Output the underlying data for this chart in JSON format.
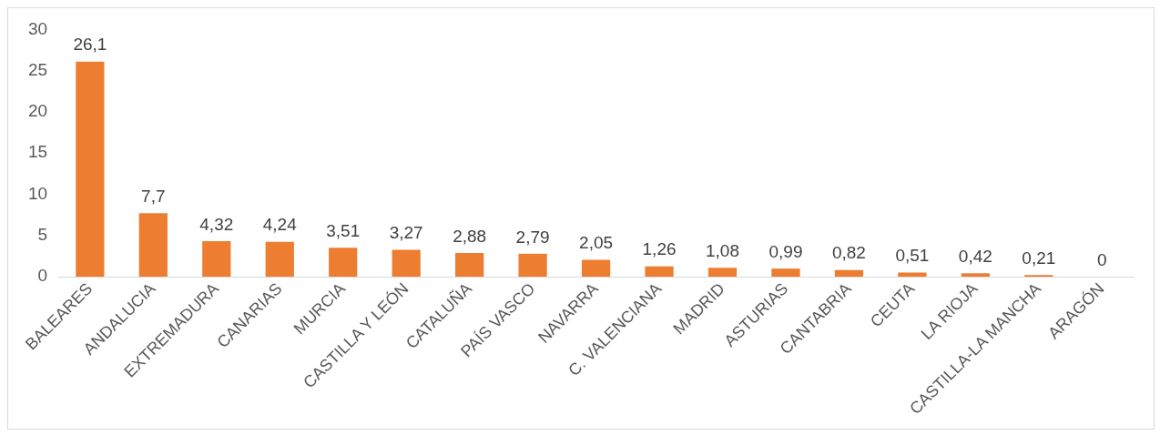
{
  "chart_data": {
    "type": "bar",
    "categories": [
      "BALEARES",
      "ANDALUCIA",
      "EXTREMADURA",
      "CANARIAS",
      "MURCIA",
      "CASTILLA Y LEÓN",
      "CATALUÑA",
      "PAÍS VASCO",
      "NAVARRA",
      "C. VALENCIANA",
      "MADRID",
      "ASTURIAS",
      "CANTABRIA",
      "CEUTA",
      "LA RIOJA",
      "CASTILLA-LA MANCHA",
      "ARAGÓN"
    ],
    "values": [
      26.1,
      7.7,
      4.32,
      4.24,
      3.51,
      3.27,
      2.88,
      2.79,
      2.05,
      1.26,
      1.08,
      0.99,
      0.82,
      0.51,
      0.42,
      0.21,
      0
    ],
    "value_labels": [
      "26,1",
      "7,7",
      "4,32",
      "4,24",
      "3,51",
      "3,27",
      "2,88",
      "2,79",
      "2,05",
      "1,26",
      "1,08",
      "0,99",
      "0,82",
      "0,51",
      "0,42",
      "0,21",
      "0"
    ],
    "color": "#ed7d31",
    "ylim": [
      0,
      30
    ],
    "yticks": [
      0,
      5,
      10,
      15,
      20,
      25,
      30
    ],
    "grid": false,
    "legend": false
  }
}
